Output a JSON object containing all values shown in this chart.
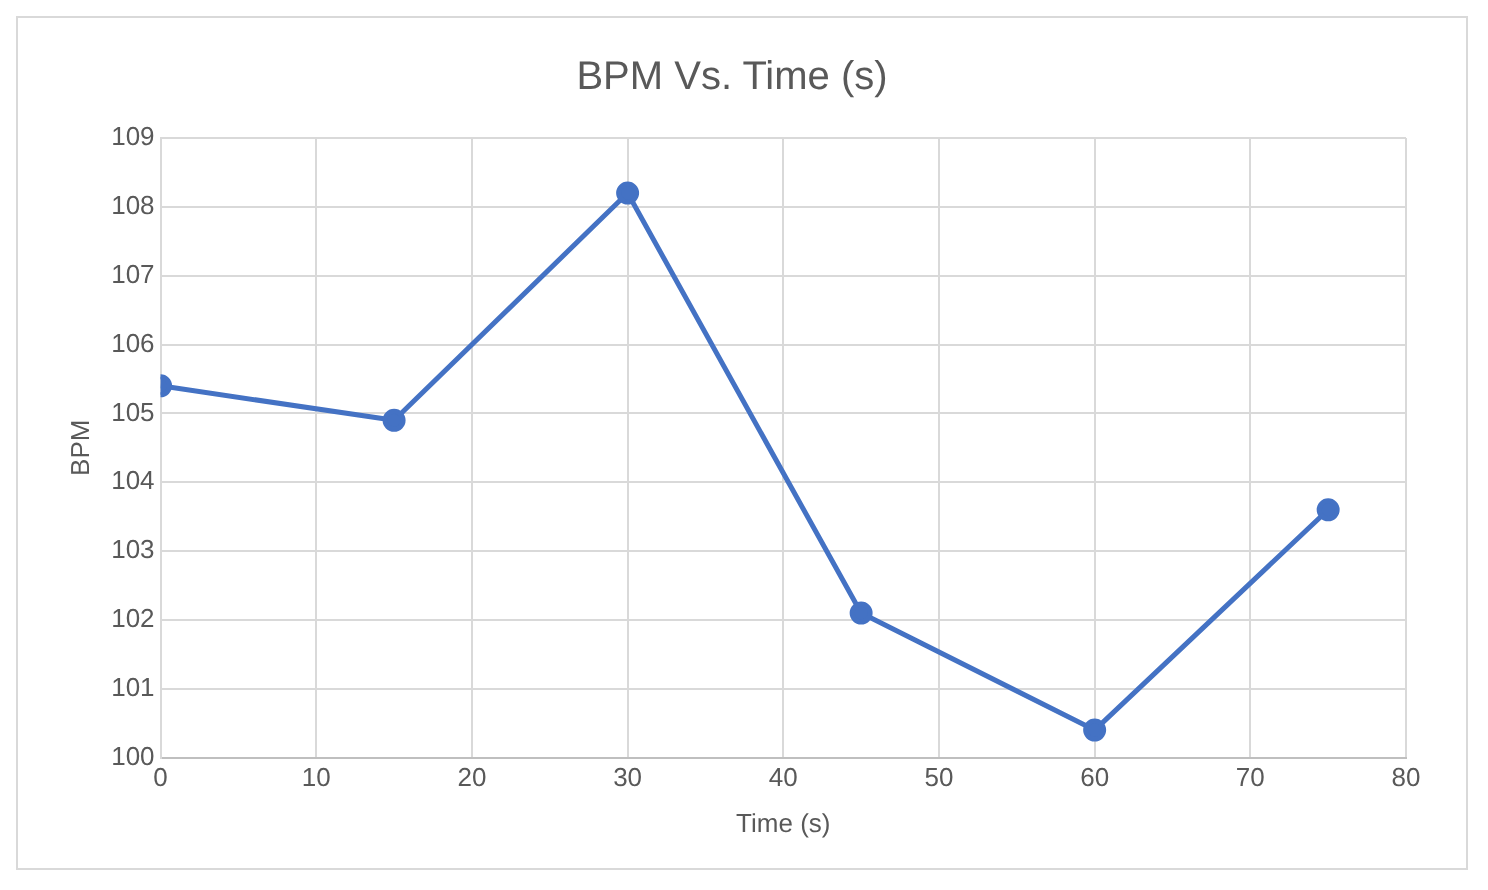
{
  "chart_data": {
    "type": "line",
    "title": "BPM Vs. Time (s)",
    "xlabel": "Time (s)",
    "ylabel": "BPM",
    "x": [
      0,
      15,
      30,
      45,
      60,
      75
    ],
    "series": [
      {
        "color": "#4472c4",
        "values": [
          105.4,
          104.9,
          108.2,
          102.1,
          100.4,
          103.6
        ]
      }
    ],
    "xlim": [
      0,
      80
    ],
    "xticks": [
      0,
      10,
      20,
      30,
      40,
      50,
      60,
      70,
      80
    ],
    "ylim": [
      100,
      109
    ],
    "yticks": [
      100,
      101,
      102,
      103,
      104,
      105,
      106,
      107,
      108,
      109
    ],
    "grid": true,
    "legend": false,
    "marker": "circle",
    "line_style": "solid"
  }
}
